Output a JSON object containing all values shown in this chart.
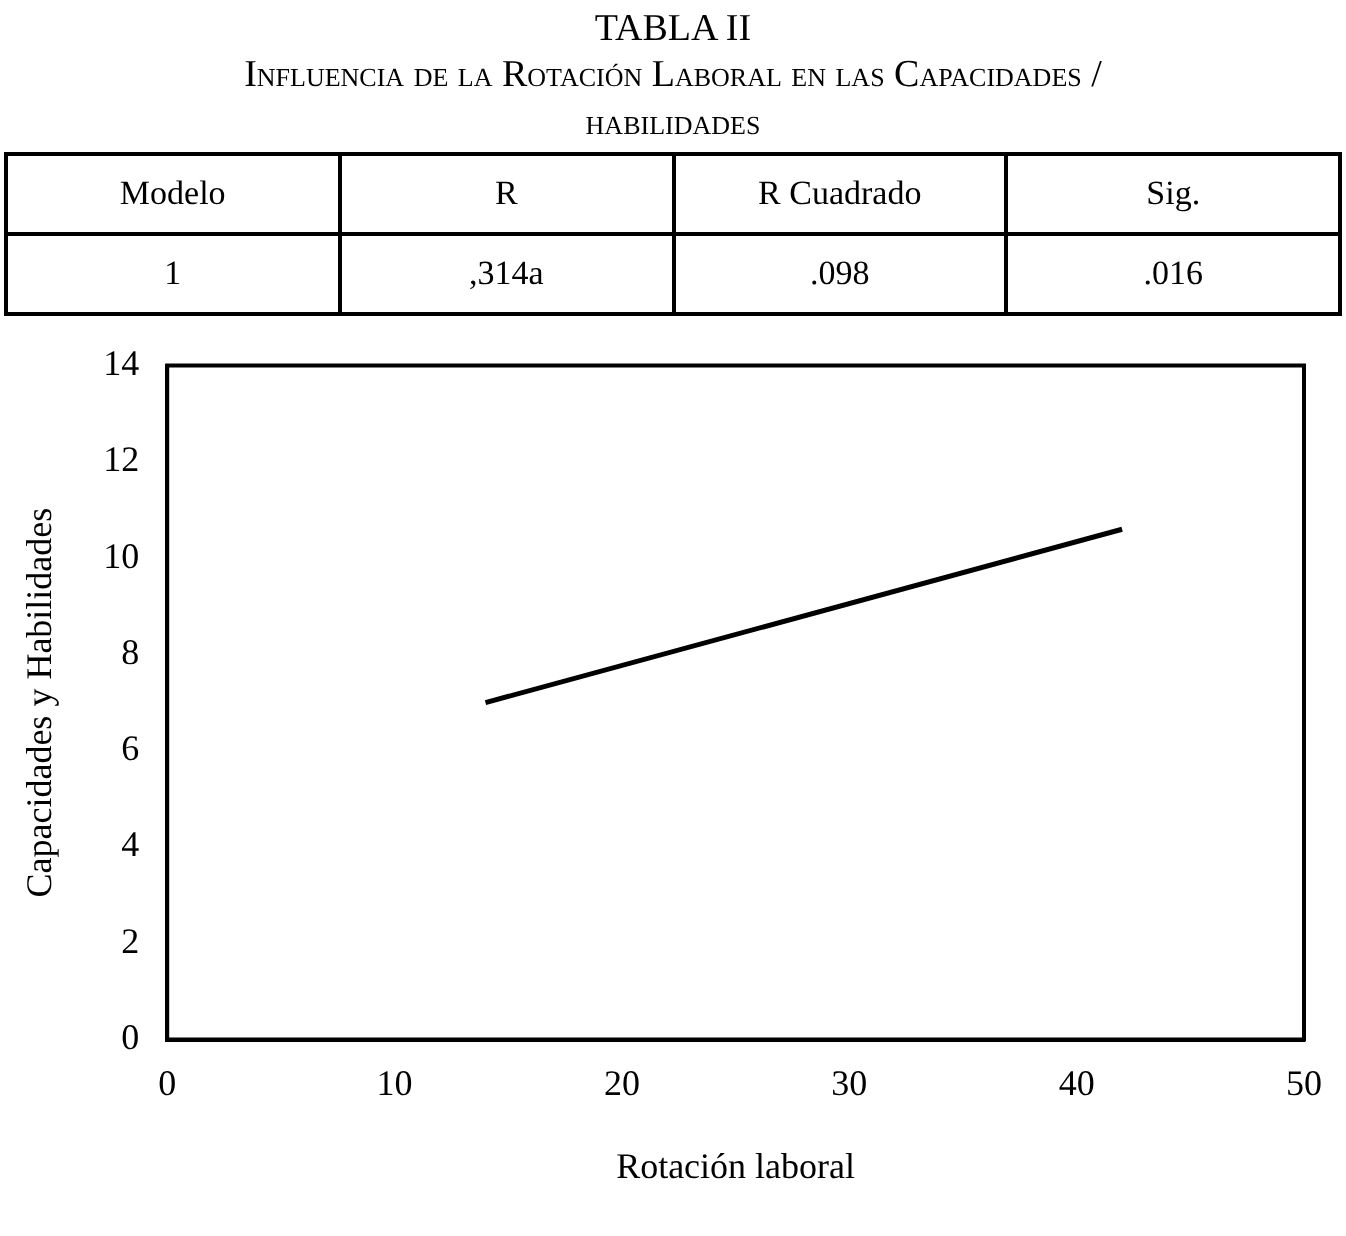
{
  "chart_data": {
    "type": "line",
    "title": "TABLA II",
    "subtitle": "Influencia de la Rotación Laboral en las Capacidades / habilidades",
    "annotations": [
      "Modelo",
      "R",
      "R Cuadrado",
      "Sig.",
      "1",
      ",314a",
      ".098",
      ".016"
    ],
    "xlabel": "Rotación laboral",
    "ylabel": "Capacidades y Habilidades",
    "x": [
      14,
      42
    ],
    "series": [
      {
        "color": "#000000",
        "values": [
          7.0,
          10.6
        ]
      }
    ],
    "xlim": [
      0,
      50
    ],
    "xticks": [
      0,
      10,
      20,
      30,
      40,
      50
    ],
    "ylim": [
      0,
      14
    ],
    "yticks": [
      0,
      2,
      4,
      6,
      8,
      10,
      12,
      14
    ],
    "grid": false,
    "legend": false,
    "marker": "none",
    "line_style": "solid"
  }
}
